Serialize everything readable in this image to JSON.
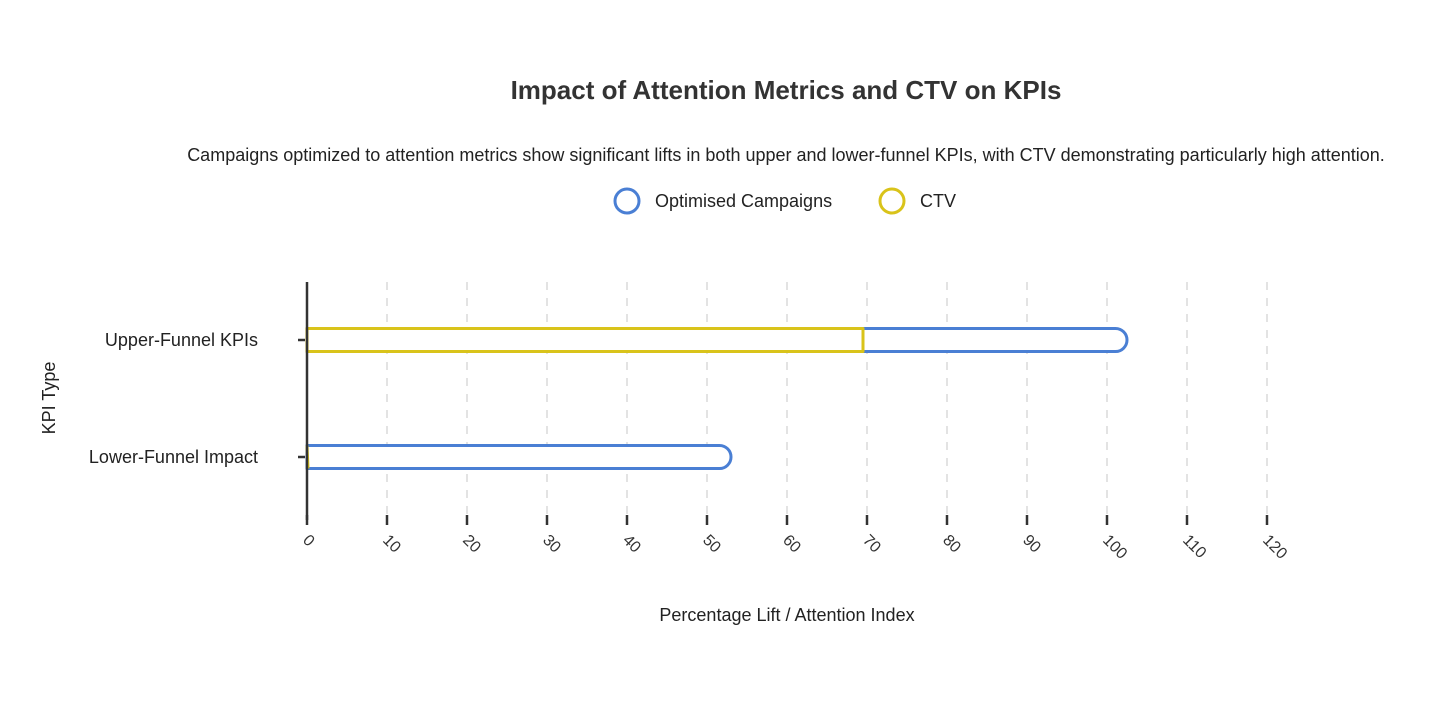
{
  "chart_data": {
    "type": "bar",
    "orientation": "horizontal",
    "title": "Impact of Attention Metrics and CTV on KPIs",
    "subtitle": "Campaigns optimized to attention metrics show significant lifts in both upper and lower-funnel KPIs, with CTV demonstrating particularly high attention.",
    "xlabel": "Percentage Lift / Attention Index",
    "ylabel": "KPI Type",
    "xlim": [
      0,
      120
    ],
    "xticks": [
      0,
      10,
      20,
      30,
      40,
      50,
      60,
      70,
      80,
      90,
      100,
      110,
      120
    ],
    "categories": [
      "Upper-Funnel KPIs",
      "Lower-Funnel Impact"
    ],
    "series": [
      {
        "name": "Optimised Campaigns",
        "color": "#4a7fd4",
        "values": [
          102.5,
          53
        ]
      },
      {
        "name": "CTV",
        "color": "#d9c31a",
        "values": [
          69.5,
          0
        ]
      }
    ],
    "grid": true,
    "legend": "top-center"
  }
}
